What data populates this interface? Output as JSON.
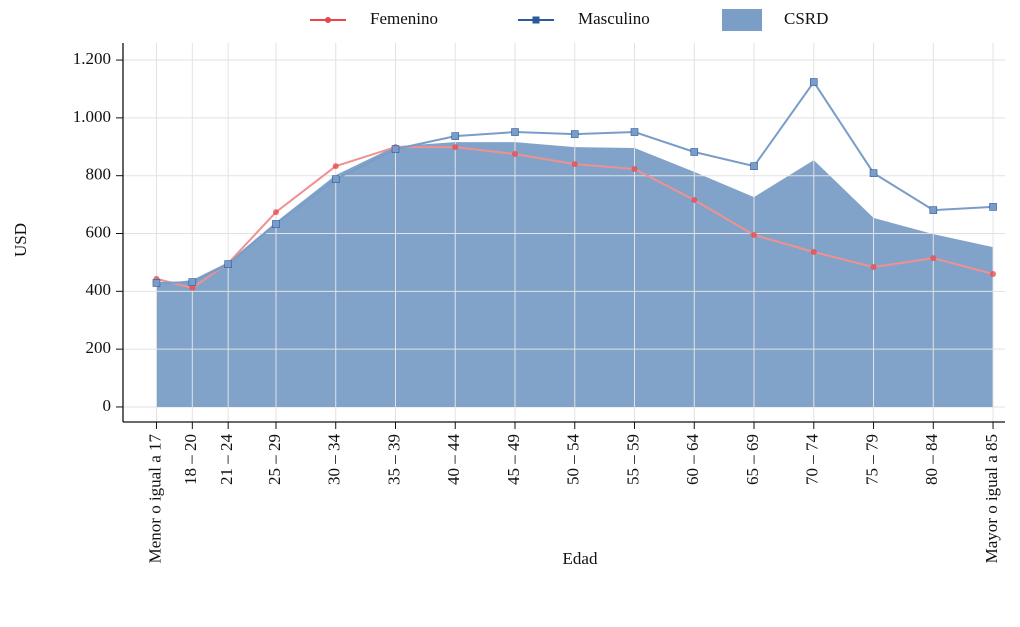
{
  "chart_data": {
    "type": "line",
    "xlabel": "Edad",
    "ylabel": "USD",
    "x": [
      17,
      20,
      23,
      27,
      32,
      37,
      42,
      47,
      52,
      57,
      62,
      67,
      72,
      77,
      82,
      87
    ],
    "xticks": [
      {
        "value": 17,
        "label": "Menor o igual a 17"
      },
      {
        "value": 20,
        "label": "18 – 20"
      },
      {
        "value": 23,
        "label": "21 – 24"
      },
      {
        "value": 27,
        "label": "25 – 29"
      },
      {
        "value": 32,
        "label": "30 – 34"
      },
      {
        "value": 37,
        "label": "35 – 39"
      },
      {
        "value": 42,
        "label": "40 – 44"
      },
      {
        "value": 47,
        "label": "45 – 49"
      },
      {
        "value": 52,
        "label": "50 – 54"
      },
      {
        "value": 57,
        "label": "55 – 59"
      },
      {
        "value": 62,
        "label": "60 – 64"
      },
      {
        "value": 67,
        "label": "65 – 69"
      },
      {
        "value": 72,
        "label": "70 – 74"
      },
      {
        "value": 77,
        "label": "75 – 79"
      },
      {
        "value": 82,
        "label": "80 – 84"
      },
      {
        "value": 87,
        "label": "Mayor o igual a 85"
      }
    ],
    "xlim": [
      14.2,
      88
    ],
    "ylim": [
      -52,
      1259
    ],
    "yticks": [
      0,
      200,
      400,
      600,
      800,
      {
        "value": 1000,
        "label": "1.000"
      },
      {
        "value": 1200,
        "label": "1.200"
      }
    ],
    "grid": true,
    "legend": "top",
    "series": [
      {
        "name": "Femenino",
        "color": "#e8474a",
        "line_color": "#f09090",
        "values": [
          443,
          412,
          497,
          674,
          833,
          899,
          899,
          875,
          840,
          823,
          716,
          595,
          536,
          484,
          515,
          460
        ]
      },
      {
        "name": "Masculino",
        "color": "#2a5a9a",
        "line_color": "#7a9cc8",
        "values": [
          429,
          432,
          494,
          633,
          788,
          892,
          937,
          951,
          944,
          951,
          882,
          833,
          1124,
          809,
          681,
          692
        ]
      },
      {
        "name": "CSRD",
        "type": "area",
        "color": "#7b9ec6",
        "values": [
          424,
          439,
          501,
          640,
          802,
          902,
          916,
          916,
          899,
          896,
          813,
          726,
          854,
          654,
          598,
          553
        ]
      }
    ]
  }
}
